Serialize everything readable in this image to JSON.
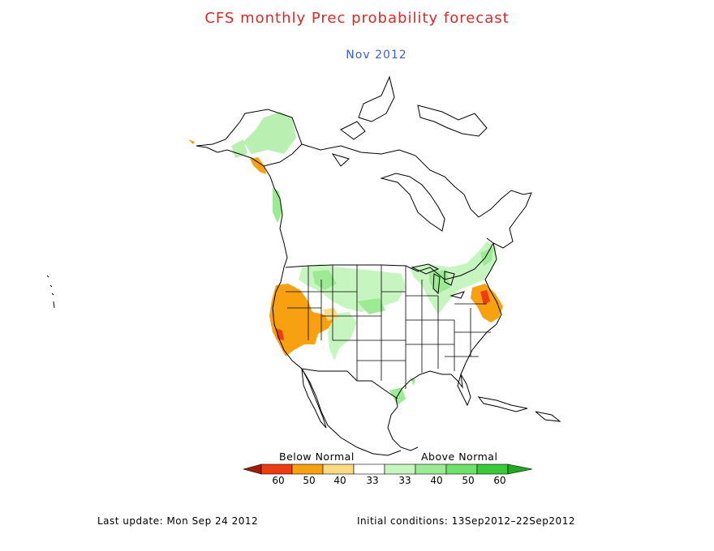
{
  "header": {
    "title": "CFS monthly Prec probability forecast",
    "subtitle": "Nov 2012"
  },
  "legend": {
    "below_label": "Below Normal",
    "above_label": "Above Normal",
    "ticks": [
      "60",
      "50",
      "40",
      "33",
      "33",
      "40",
      "50",
      "60"
    ],
    "colors": {
      "below_60": "#a01c0a",
      "below_50": "#ef3b12",
      "below_40": "#f7a010",
      "below_33": "#fadb83",
      "near_normal": "#ffffff",
      "above_33": "#c6f5c0",
      "above_40": "#9dea95",
      "above_50": "#6fe06a",
      "above_60": "#20a820"
    }
  },
  "footer": {
    "last_update": "Last update: Mon Sep 24 2012",
    "initial_conditions": "Initial conditions: 13Sep2012–22Sep2012"
  }
}
